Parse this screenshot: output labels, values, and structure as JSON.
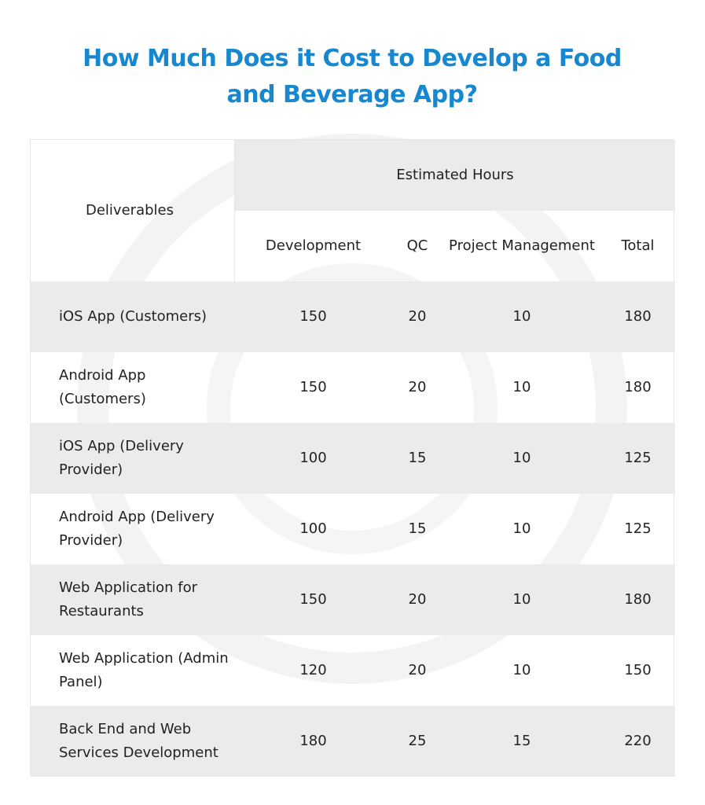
{
  "header": {
    "title": "How Much Does it Cost to Develop a Food and Beverage App?"
  },
  "table": {
    "columns": {
      "deliverables": "Deliverables",
      "group": "Estimated Hours",
      "subcolumns": [
        "Development",
        "QC",
        "Project Management",
        "Total"
      ]
    },
    "rows": [
      [
        "iOS App (Customers)",
        150,
        20,
        10,
        180
      ],
      [
        "Android App (Customers)",
        150,
        20,
        10,
        180
      ],
      [
        "iOS App (Delivery Provider)",
        100,
        15,
        10,
        125
      ],
      [
        "Android App (Delivery Provider)",
        100,
        15,
        10,
        125
      ],
      [
        "Web Application for Restaurants",
        150,
        20,
        10,
        180
      ],
      [
        "Web Application (Admin Panel)",
        120,
        20,
        10,
        150
      ],
      [
        "Back End and Web Services Development",
        180,
        25,
        15,
        220
      ]
    ]
  }
}
